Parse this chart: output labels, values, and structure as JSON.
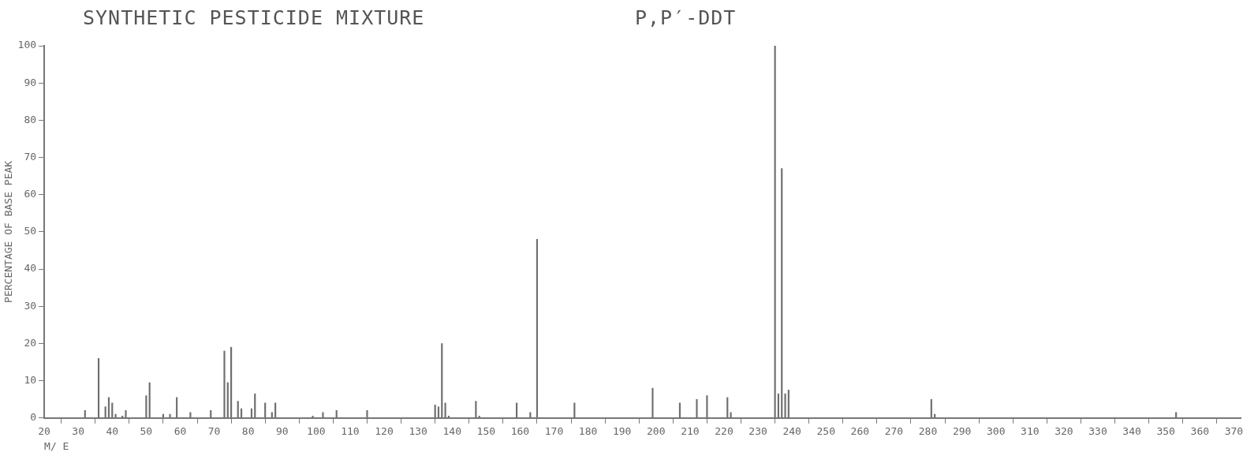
{
  "chart_data": {
    "type": "bar",
    "title": "SYNTHETIC PESTICIDE MIXTURE",
    "subtitle": "P,P′-DDT",
    "xlabel": "M/ E",
    "ylabel": "PERCENTAGE OF BASE PEAK",
    "x": [
      32,
      36,
      38,
      39,
      40,
      41,
      43,
      44,
      50,
      51,
      55,
      57,
      59,
      63,
      69,
      73,
      74,
      75,
      77,
      78,
      81,
      82,
      85,
      87,
      88,
      99,
      102,
      106,
      115,
      135,
      136,
      137,
      138,
      139,
      147,
      148,
      159,
      163,
      165,
      176,
      199,
      207,
      212,
      215,
      221,
      222,
      235,
      236,
      237,
      238,
      239,
      281,
      282,
      353
    ],
    "values": [
      2,
      16,
      3,
      5.5,
      4,
      1,
      0.5,
      2,
      6,
      9.5,
      1,
      1,
      5.5,
      1.5,
      2,
      18,
      9.5,
      19,
      4.5,
      2.5,
      2.5,
      6.5,
      4,
      1.5,
      4,
      0.5,
      1.5,
      2,
      2,
      3.5,
      3,
      20,
      4,
      0.5,
      4.5,
      0.5,
      4,
      1.5,
      48,
      4,
      8,
      4,
      5,
      6,
      5.5,
      1.5,
      100,
      6.5,
      67,
      6.5,
      7.5,
      5,
      1,
      1.5
    ],
    "color": "#6e6e6e",
    "xlim": [
      20,
      372
    ],
    "xticks": [
      20,
      30,
      40,
      50,
      60,
      70,
      80,
      90,
      100,
      110,
      120,
      130,
      140,
      150,
      160,
      170,
      180,
      190,
      200,
      210,
      220,
      230,
      240,
      250,
      260,
      270,
      280,
      290,
      300,
      310,
      320,
      330,
      340,
      350,
      360,
      370
    ],
    "ylim": [
      0,
      100
    ],
    "yticks": [
      0,
      10,
      20,
      30,
      40,
      50,
      60,
      70,
      80,
      90,
      100
    ],
    "grid": false,
    "legend": false
  }
}
